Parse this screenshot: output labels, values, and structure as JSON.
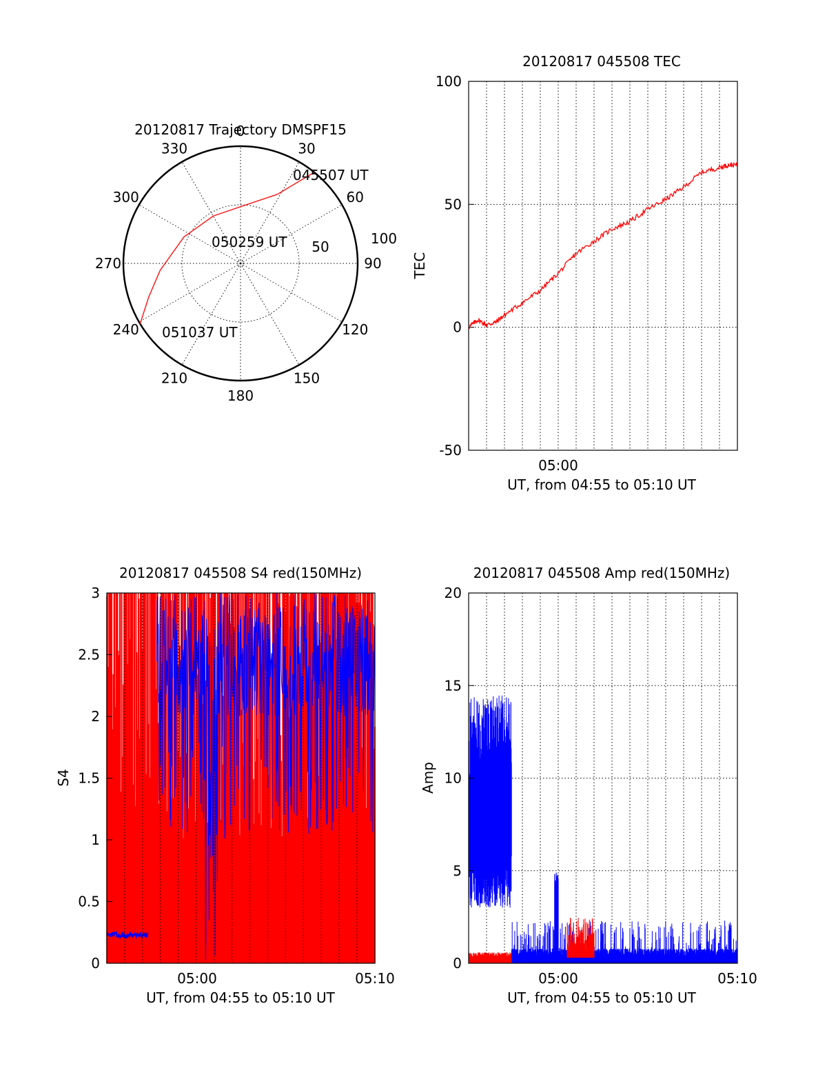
{
  "colors": {
    "red": "#ff0000",
    "blue": "#0000ff",
    "black": "#000000",
    "grid": "#000000"
  },
  "chart_data": [
    {
      "type": "polar",
      "title": "20120817 Trajectory DMSPF15",
      "angle_labels": [
        "0",
        "30",
        "60",
        "90",
        "120",
        "150",
        "180",
        "210",
        "240",
        "270",
        "300",
        "330"
      ],
      "radius_labels": [
        "50",
        "100"
      ],
      "elevation_rings": [
        50,
        0
      ],
      "track": {
        "start": {
          "label": "045507 UT",
          "azimuth": 39,
          "zenith": 90
        },
        "mid": {
          "label": "050259 UT"
        },
        "end": {
          "label": "051037 UT",
          "azimuth": 239,
          "zenith": 90
        },
        "points": [
          {
            "az": 39,
            "zen": 90
          },
          {
            "az": 28,
            "zen": 60
          },
          {
            "az": 5,
            "zen": 45
          },
          {
            "az": 330,
            "zen": 42
          },
          {
            "az": 295,
            "zen": 48
          },
          {
            "az": 265,
            "zen": 62
          },
          {
            "az": 250,
            "zen": 75
          },
          {
            "az": 239,
            "zen": 90
          }
        ]
      }
    },
    {
      "type": "line",
      "title": "20120817 045508 TEC",
      "ylabel": "TEC",
      "xlabel": "UT, from 04:55 to 05:10 UT",
      "xtick_labels": [
        "05:00"
      ],
      "xlim_min": [
        0,
        15
      ],
      "ylim": [
        -50,
        100
      ],
      "yticks": [
        -50,
        0,
        50,
        100
      ],
      "grid": true,
      "series": [
        {
          "color": "red",
          "x": [
            0,
            0.5,
            1,
            1.5,
            2,
            3,
            4,
            5,
            6,
            7,
            8,
            9,
            10,
            11,
            12,
            13,
            14,
            14.5,
            15
          ],
          "y": [
            0,
            3,
            1,
            2,
            5,
            10,
            15,
            22,
            30,
            35,
            40,
            43,
            48,
            52,
            57,
            63,
            65,
            66,
            66
          ]
        }
      ]
    },
    {
      "type": "line",
      "title": "20120817 045508 S4 red(150MHz)",
      "ylabel": "S4",
      "xlabel": "UT, from 04:55 to 05:10 UT",
      "xtick_labels": [
        "05:00",
        "05:10"
      ],
      "ylim": [
        0,
        3
      ],
      "yticks": [
        "0",
        "0.5",
        "1",
        "1.5",
        "2",
        "2.5",
        "3"
      ],
      "grid": true,
      "note_levels": {
        "blue_baseline_start": 0.23,
        "blue_baseline_end_x_min": 2.3
      }
    },
    {
      "type": "line",
      "title": "20120817 045508 Amp red(150MHz)",
      "ylabel": "Amp",
      "xlabel": "UT, from 04:55 to 05:10 UT",
      "xtick_labels": [
        "05:00",
        "05:10"
      ],
      "ylim": [
        0,
        20
      ],
      "yticks": [
        0,
        5,
        10,
        15,
        20
      ],
      "grid": true,
      "segments": {
        "blue_high": {
          "x": [
            0,
            2.4
          ],
          "low": 3,
          "high": 14.5
        },
        "red_low": {
          "x": [
            0,
            2.4
          ],
          "level": 0.3
        },
        "blue_spike": {
          "x": [
            4.8,
            5.0
          ],
          "high": 5
        },
        "blue_noise": {
          "x": [
            2.4,
            15
          ],
          "level": 0.6,
          "high": 1.8
        },
        "red_burst": {
          "x": [
            5.5,
            7.0
          ],
          "high": 2.5
        }
      }
    }
  ]
}
